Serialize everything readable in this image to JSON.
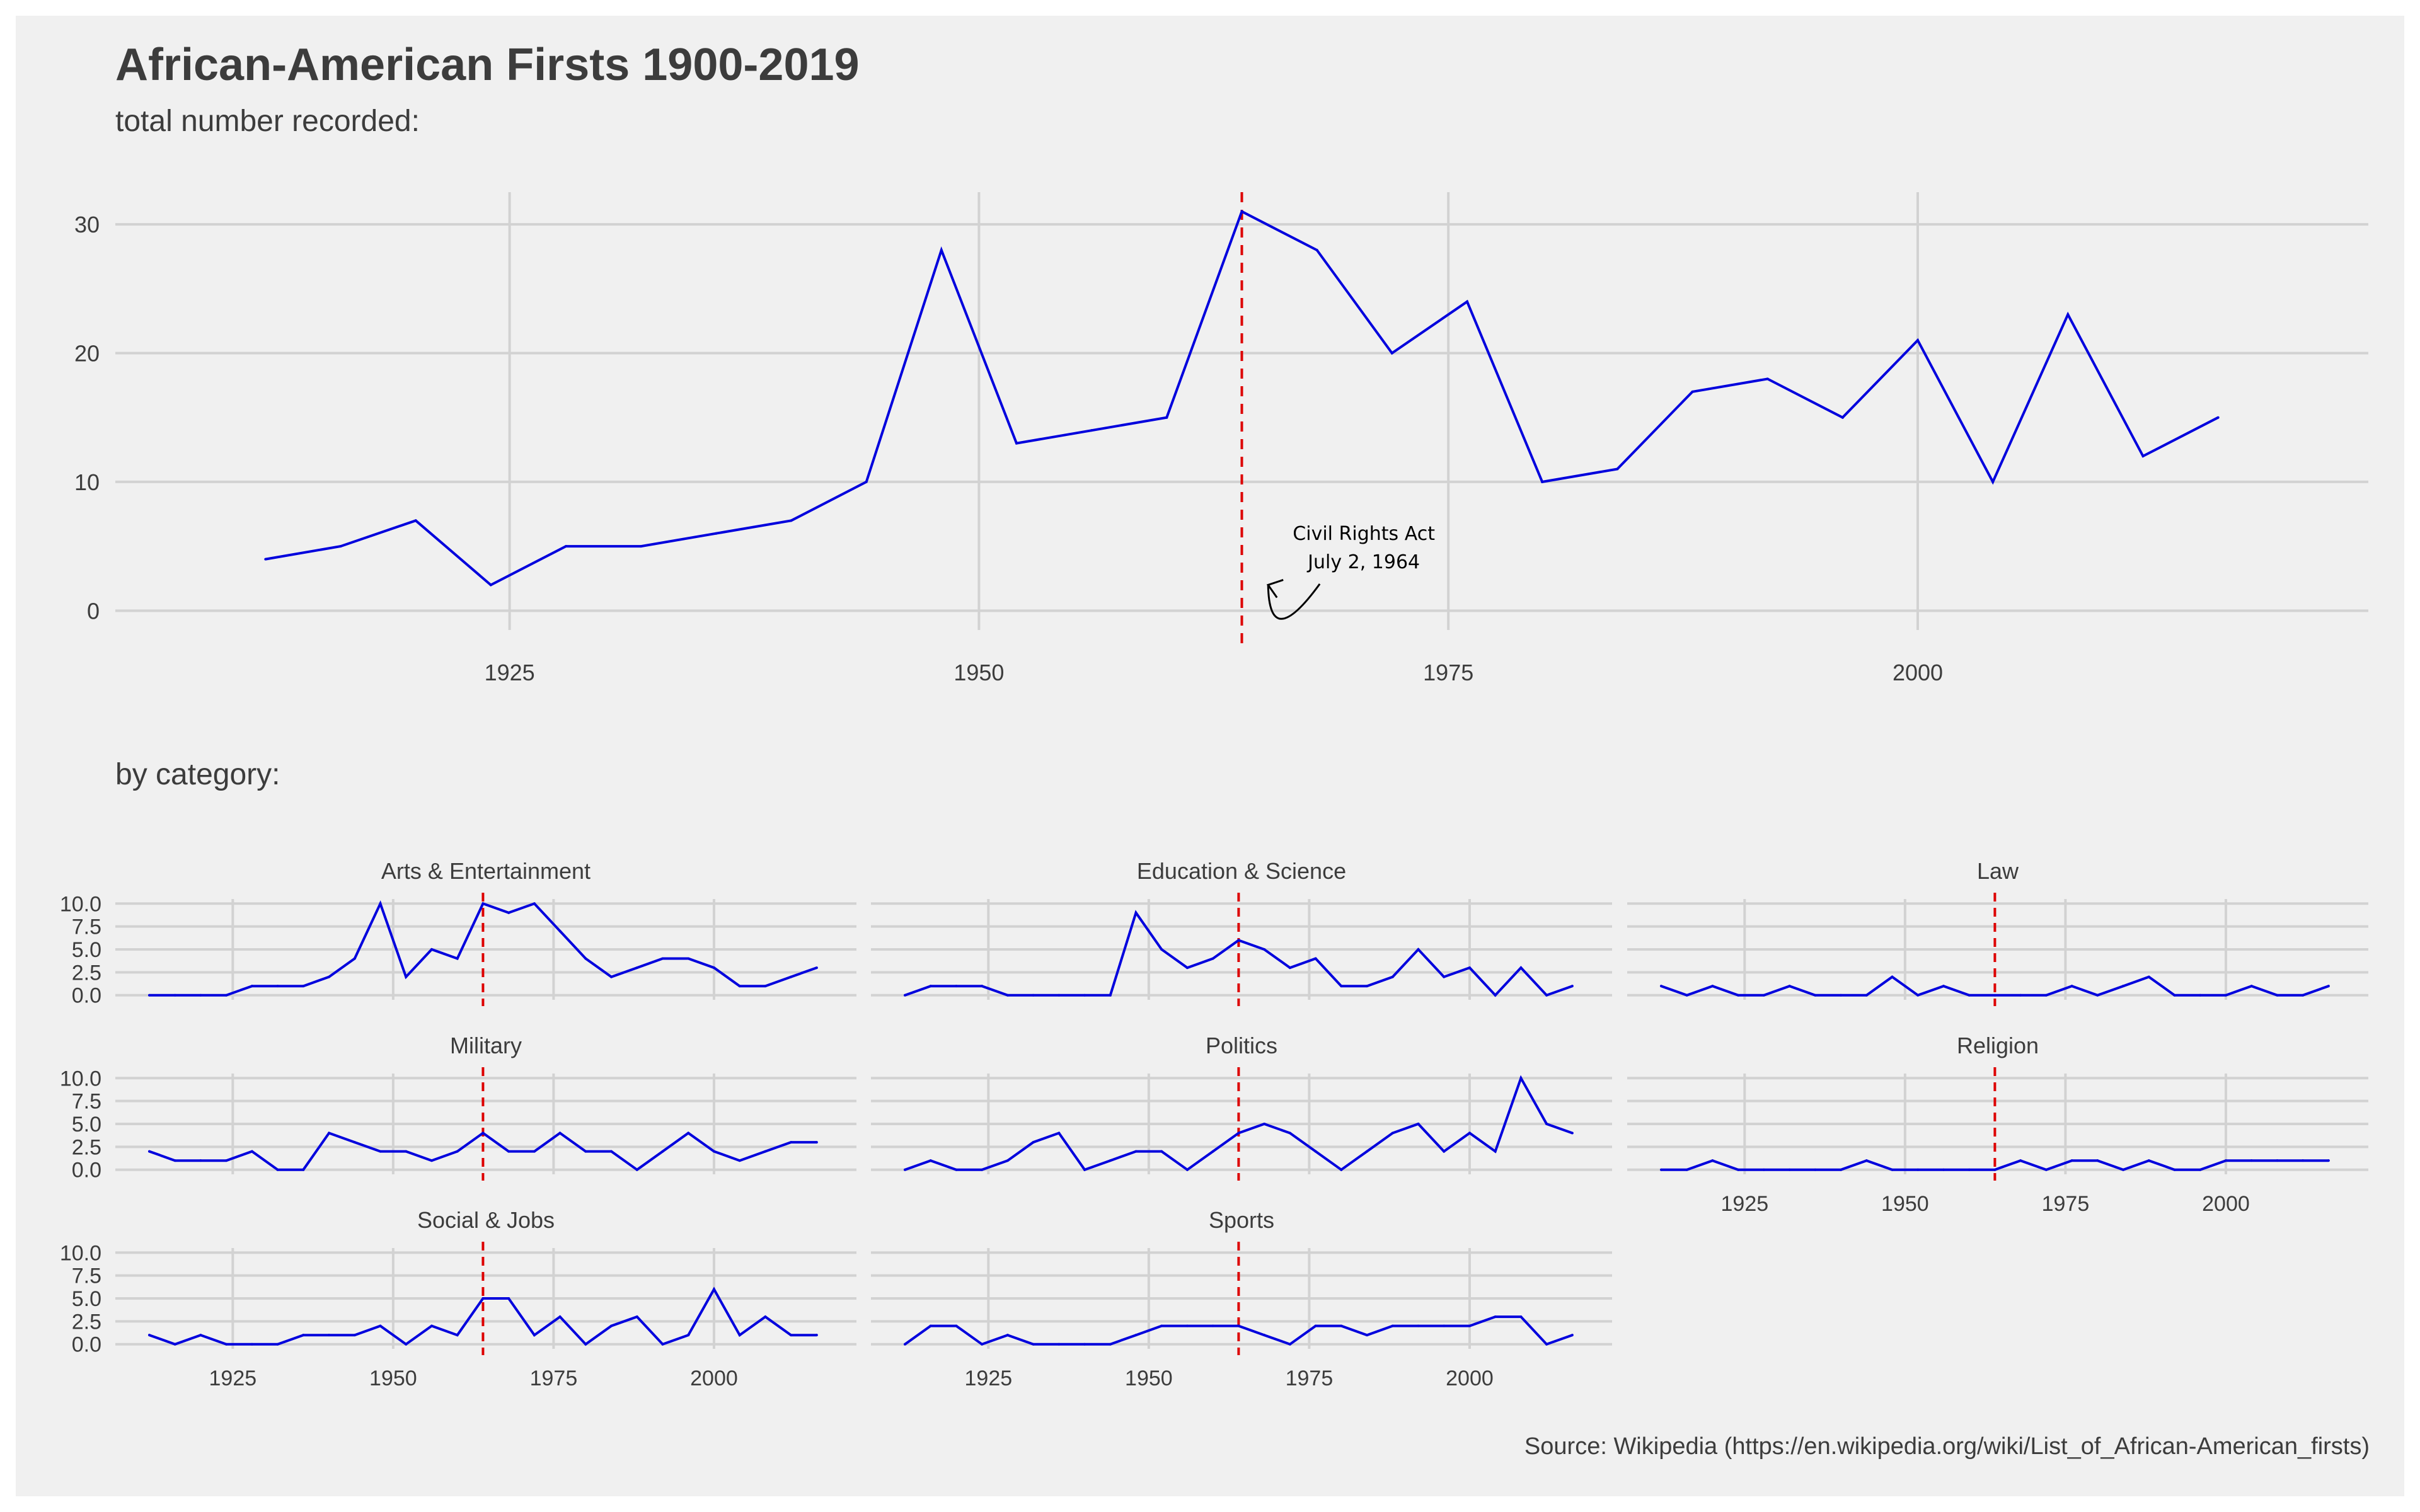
{
  "header": {
    "title": "African-American Firsts 1900-2019",
    "subtitle": "total number recorded:",
    "section_label": "by category:",
    "caption": "Source: Wikipedia (https://en.wikipedia.org/wiki/List_of_African-American_firsts)"
  },
  "colors": {
    "line": "#0000dd",
    "vline": "#dd0000",
    "grid": "#d2d2d2",
    "background": "#f0f0f0",
    "text": "#3c3c3c"
  },
  "chart_data": [
    {
      "type": "line",
      "title": "total number recorded:",
      "x": [
        1912,
        1916,
        1920,
        1924,
        1928,
        1932,
        1936,
        1940,
        1944,
        1948,
        1952,
        1956,
        1960,
        1964,
        1968,
        1972,
        1976,
        1980,
        1984,
        1988,
        1992,
        1996,
        2000,
        2004,
        2008,
        2012,
        2016
      ],
      "y": [
        4,
        5,
        7,
        2,
        5,
        5,
        6,
        7,
        10,
        28,
        13,
        14,
        15,
        31,
        28,
        20,
        24,
        10,
        11,
        17,
        18,
        15,
        21,
        10,
        23,
        12,
        15
      ],
      "xlim": [
        1904,
        2024
      ],
      "ylim": [
        -1.5,
        32.5
      ],
      "xticks": [
        1925,
        1950,
        1975,
        2000
      ],
      "yticks": [
        0,
        10,
        20,
        30
      ],
      "vline": 1964,
      "annotation": {
        "lines": [
          "Civil Rights Act",
          "July 2, 1964"
        ],
        "x": 1970.5,
        "y": 5.5,
        "arrow_to": [
          1965.4,
          2
        ]
      },
      "grid": true
    },
    {
      "type": "line",
      "title": "by category:",
      "facets": true,
      "x": [
        1912,
        1916,
        1920,
        1924,
        1928,
        1932,
        1936,
        1940,
        1944,
        1948,
        1952,
        1956,
        1960,
        1964,
        1968,
        1972,
        1976,
        1980,
        1984,
        1988,
        1992,
        1996,
        2000,
        2004,
        2008,
        2012,
        2016
      ],
      "ylim": [
        -0.5,
        10.5
      ],
      "yticks": [
        "0.0",
        "2.5",
        "5.0",
        "7.5",
        "10.0"
      ],
      "xticks": [
        1925,
        1950,
        1975,
        2000
      ],
      "vline": 1964,
      "series": [
        {
          "name": "Arts & Entertainment",
          "values": [
            0,
            0,
            0,
            0,
            1,
            1,
            1,
            2,
            4,
            10,
            2,
            5,
            4,
            10,
            9,
            10,
            7,
            4,
            2,
            3,
            4,
            4,
            3,
            1,
            1,
            2,
            3
          ]
        },
        {
          "name": "Education & Science",
          "values": [
            0,
            1,
            1,
            1,
            0,
            0,
            0,
            0,
            0,
            9,
            5,
            3,
            4,
            6,
            5,
            3,
            4,
            1,
            1,
            2,
            5,
            2,
            3,
            0,
            3,
            0,
            1
          ]
        },
        {
          "name": "Law",
          "values": [
            1,
            0,
            1,
            0,
            0,
            1,
            0,
            0,
            0,
            2,
            0,
            1,
            0,
            0,
            0,
            0,
            1,
            0,
            1,
            2,
            0,
            0,
            0,
            1,
            0,
            0,
            1
          ]
        },
        {
          "name": "Military",
          "values": [
            2,
            1,
            1,
            1,
            2,
            0,
            0,
            4,
            3,
            2,
            2,
            1,
            2,
            4,
            2,
            2,
            4,
            2,
            2,
            0,
            2,
            4,
            2,
            1,
            2,
            3,
            3
          ]
        },
        {
          "name": "Politics",
          "values": [
            0,
            1,
            0,
            0,
            1,
            3,
            4,
            0,
            1,
            2,
            2,
            0,
            2,
            4,
            5,
            4,
            2,
            0,
            2,
            4,
            5,
            2,
            4,
            2,
            10,
            5,
            4
          ]
        },
        {
          "name": "Religion",
          "values": [
            0,
            0,
            1,
            0,
            0,
            0,
            0,
            0,
            1,
            0,
            0,
            0,
            0,
            0,
            1,
            0,
            1,
            1,
            0,
            1,
            0,
            0,
            1,
            1,
            1,
            1,
            1
          ]
        },
        {
          "name": "Social & Jobs",
          "values": [
            1,
            0,
            1,
            0,
            0,
            0,
            1,
            1,
            1,
            2,
            0,
            2,
            1,
            5,
            5,
            1,
            3,
            0,
            2,
            3,
            0,
            1,
            6,
            1,
            3,
            1,
            1
          ]
        },
        {
          "name": "Sports",
          "values": [
            0,
            2,
            2,
            0,
            1,
            0,
            0,
            0,
            0,
            1,
            2,
            2,
            2,
            2,
            1,
            0,
            2,
            2,
            1,
            2,
            2,
            2,
            2,
            3,
            3,
            0,
            1
          ]
        }
      ]
    }
  ]
}
